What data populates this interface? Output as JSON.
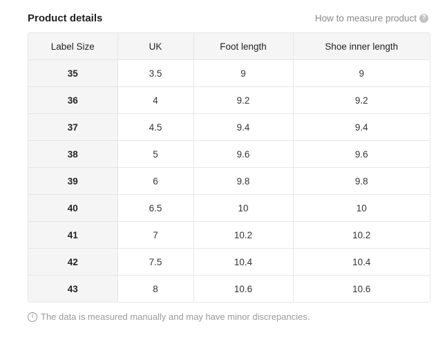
{
  "header": {
    "title": "Product details",
    "measure_link": "How to measure product",
    "help_icon_glyph": "?"
  },
  "table": {
    "columns": [
      "Label Size",
      "UK",
      "Foot length",
      "Shoe inner length"
    ],
    "rows": [
      [
        "35",
        "3.5",
        "9",
        "9"
      ],
      [
        "36",
        "4",
        "9.2",
        "9.2"
      ],
      [
        "37",
        "4.5",
        "9.4",
        "9.4"
      ],
      [
        "38",
        "5",
        "9.6",
        "9.6"
      ],
      [
        "39",
        "6",
        "9.8",
        "9.8"
      ],
      [
        "40",
        "6.5",
        "10",
        "10"
      ],
      [
        "41",
        "7",
        "10.2",
        "10.2"
      ],
      [
        "42",
        "7.5",
        "10.4",
        "10.4"
      ],
      [
        "43",
        "8",
        "10.6",
        "10.6"
      ]
    ]
  },
  "footnote": {
    "info_icon_glyph": "i",
    "text": "The data is measured manually and may have minor discrepancies."
  },
  "colors": {
    "header_bg": "#f5f5f5",
    "border": "#e6e6e6",
    "muted_text": "#9a9a9a",
    "help_icon_bg": "#c2c2c2"
  },
  "icons": {
    "help": "question-circle-icon",
    "info": "info-circle-icon"
  }
}
